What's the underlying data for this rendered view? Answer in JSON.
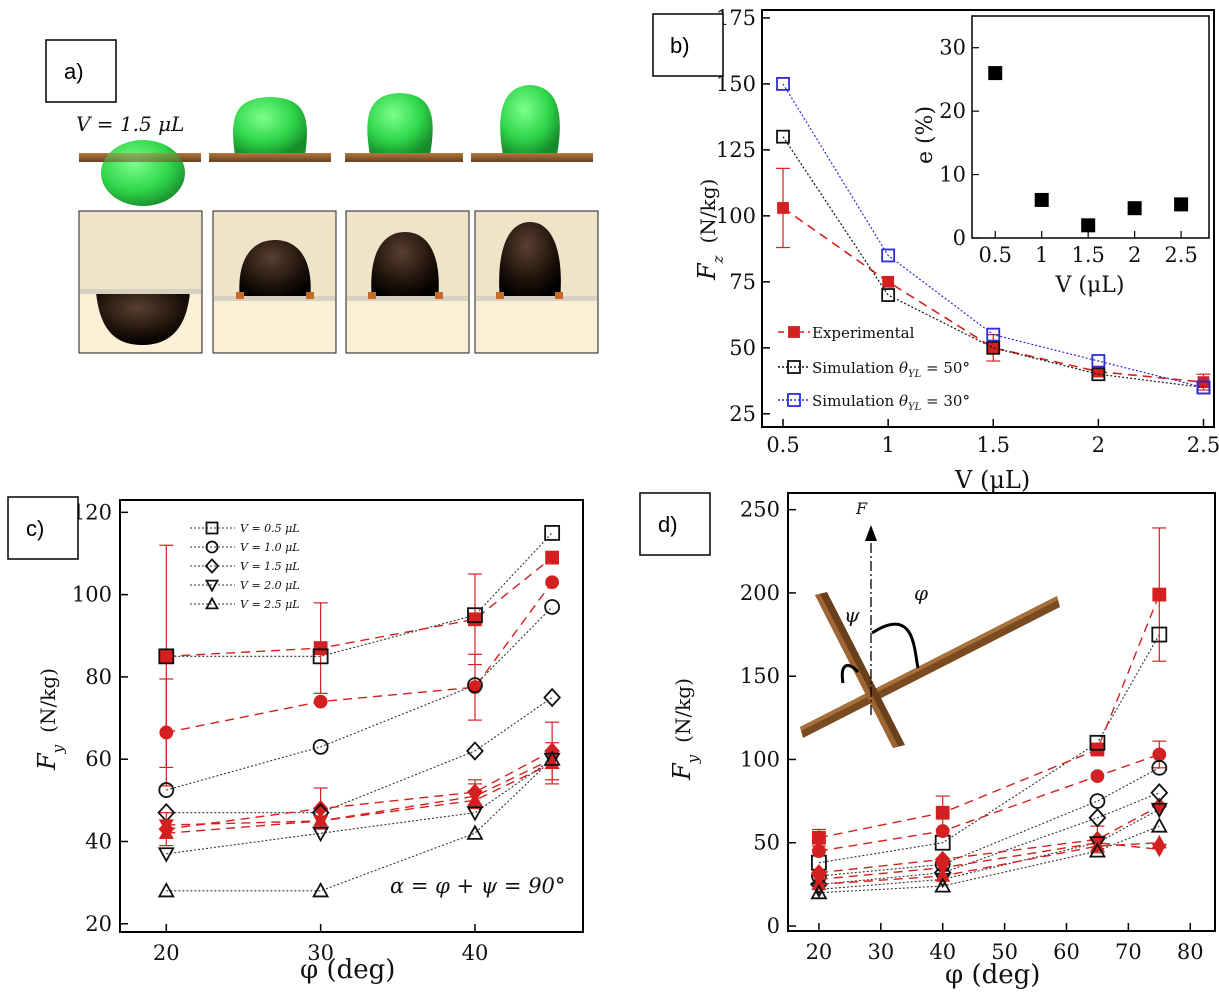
{
  "panels": {
    "a": {
      "label": "a)",
      "volume_text": "V = 1.5 μL"
    },
    "b": {
      "label": "b)"
    },
    "c": {
      "label": "c)"
    },
    "d": {
      "label": "d)",
      "force_label": "F",
      "psi_label": "ψ",
      "phi_label": "φ"
    }
  },
  "colors": {
    "red": "#d42020",
    "black": "#111111",
    "blue": "#2b2bd6",
    "green": "#2fd64a",
    "rod": "#8a5a2b"
  },
  "chart_data": [
    {
      "id": "b",
      "type": "line",
      "xlabel": "V (μL)",
      "ylabel_main": "F",
      "ylabel_sub": "z",
      "ylabel_unit": "(N/kg)",
      "x": [
        0.5,
        1,
        1.5,
        2,
        2.5
      ],
      "xticks": [
        "0.5",
        "1",
        "1.5",
        "2",
        "2.5"
      ],
      "yticks": [
        "25",
        "50",
        "75",
        "100",
        "125",
        "150",
        "175"
      ],
      "xlim": [
        0.4,
        2.55
      ],
      "ylim": [
        20,
        178
      ],
      "legend_position": "bottom-left",
      "series": [
        {
          "name": "Experimental",
          "marker": "filled-square",
          "color": "#d42020",
          "line": "dashed",
          "values": [
            103,
            75,
            50,
            41,
            37
          ],
          "err": [
            15,
            0,
            5,
            0,
            3
          ]
        },
        {
          "name": "Simulation θYL = 50°",
          "legend_main": "Simulation",
          "legend_math": "θ",
          "legend_sub": "YL",
          "legend_eq": " = 50°",
          "marker": "open-square",
          "color": "#111111",
          "line": "dotted",
          "values": [
            130,
            70,
            50,
            40,
            35
          ]
        },
        {
          "name": "Simulation θYL = 30°",
          "legend_main": "Simulation",
          "legend_math": "θ",
          "legend_sub": "YL",
          "legend_eq": " = 30°",
          "marker": "open-square",
          "color": "#2b2bd6",
          "line": "dotted",
          "values": [
            150,
            85,
            55,
            45,
            35
          ]
        }
      ],
      "inset": {
        "type": "scatter",
        "xlabel": "V (μL)",
        "ylabel": "e (%)",
        "x": [
          0.5,
          1,
          1.5,
          2,
          2.5
        ],
        "values": [
          26,
          6,
          2,
          4.7,
          5.3
        ],
        "xticks": [
          "0.5",
          "1",
          "1.5",
          "2",
          "2.5"
        ],
        "yticks": [
          "0",
          "10",
          "20",
          "30"
        ],
        "xlim": [
          0.25,
          2.8
        ],
        "ylim": [
          0,
          35
        ]
      }
    },
    {
      "id": "c",
      "type": "line",
      "xlabel": "φ (deg)",
      "ylabel_main": "F",
      "ylabel_sub": "y",
      "ylabel_unit": "(N/kg)",
      "x": [
        20,
        30,
        40,
        45
      ],
      "xticks": [
        "20",
        "30",
        "40"
      ],
      "yticks": [
        "20",
        "40",
        "60",
        "80",
        "100",
        "120"
      ],
      "xlim": [
        17,
        47
      ],
      "ylim": [
        18,
        123
      ],
      "annotation": "α = φ + ψ = 90°",
      "legend_position": "top-left",
      "series": [
        {
          "name": "V = 0.5 μL",
          "marker": "square",
          "sim": [
            85,
            85,
            95,
            115
          ],
          "exp": [
            85,
            87,
            94,
            109
          ],
          "err": [
            27,
            11,
            11,
            0
          ]
        },
        {
          "name": "V = 1.0 μL",
          "marker": "circle",
          "sim": [
            52.5,
            63,
            78,
            97
          ],
          "exp": [
            66.5,
            74,
            77.5,
            103
          ],
          "err": [
            13,
            0,
            8,
            0
          ]
        },
        {
          "name": "V = 1.5 μL",
          "marker": "diamond",
          "sim": [
            47,
            47,
            62,
            75
          ],
          "exp": [
            43,
            48,
            52,
            62
          ],
          "err": [
            4,
            5,
            3,
            7
          ]
        },
        {
          "name": "V = 2.0 μL",
          "marker": "triangle-down",
          "sim": [
            37,
            42,
            47,
            60
          ],
          "exp": [
            44,
            45,
            51,
            60
          ],
          "err": [
            0,
            0,
            3,
            0
          ]
        },
        {
          "name": "V = 2.5 μL",
          "marker": "triangle-up",
          "sim": [
            28,
            28,
            42,
            60
          ],
          "exp": [
            42,
            45,
            50,
            59
          ],
          "err": [
            0,
            0,
            0,
            5
          ]
        }
      ]
    },
    {
      "id": "d",
      "type": "line",
      "xlabel": "φ (deg)",
      "ylabel_main": "F",
      "ylabel_sub": "y",
      "ylabel_unit": "(N/kg)",
      "x": [
        20,
        40,
        65,
        75
      ],
      "xticks": [
        "20",
        "30",
        "40",
        "50",
        "60",
        "70",
        "80"
      ],
      "xtick_values": [
        20,
        30,
        40,
        50,
        60,
        70,
        80
      ],
      "yticks": [
        "0",
        "50",
        "100",
        "150",
        "200",
        "250"
      ],
      "xlim": [
        15,
        84
      ],
      "ylim": [
        -3,
        260
      ],
      "series": [
        {
          "name": "V = 0.5 μL",
          "marker": "square",
          "sim": [
            38,
            50,
            110,
            175
          ],
          "exp": [
            53,
            68,
            106,
            199
          ],
          "err": [
            5,
            10,
            0,
            40
          ]
        },
        {
          "name": "V = 1.0 μL",
          "marker": "circle",
          "sim": [
            30,
            37,
            75,
            95
          ],
          "exp": [
            45,
            57,
            90,
            103
          ],
          "err": [
            0,
            0,
            0,
            8
          ]
        },
        {
          "name": "V = 1.5 μL",
          "marker": "diamond",
          "sim": [
            25,
            32,
            65,
            80
          ],
          "exp": [
            32,
            40,
            52,
            72
          ],
          "err": [
            0,
            0,
            8,
            0
          ]
        },
        {
          "name": "V = 2.0 μL",
          "marker": "triangle-down",
          "sim": [
            22,
            28,
            50,
            70
          ],
          "exp": [
            28,
            35,
            50,
            46
          ],
          "err": [
            0,
            0,
            0,
            0
          ]
        },
        {
          "name": "V = 2.5 μL",
          "marker": "triangle-up",
          "sim": [
            20,
            24,
            45,
            60
          ],
          "exp": [
            25,
            30,
            48,
            50
          ],
          "err": [
            0,
            0,
            0,
            0
          ]
        }
      ]
    }
  ]
}
